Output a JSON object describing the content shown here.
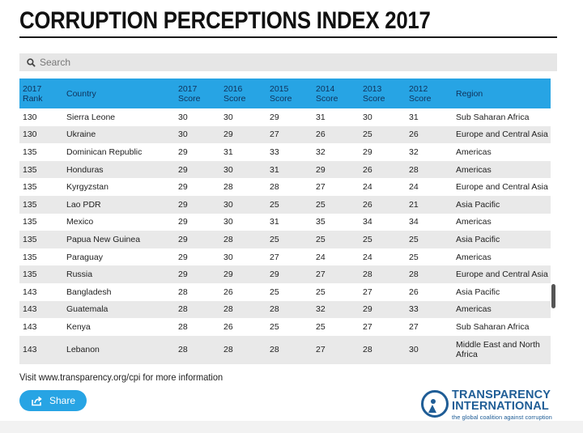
{
  "title": "CORRUPTION PERCEPTIONS INDEX 2017",
  "search": {
    "placeholder": "Search"
  },
  "table": {
    "headers": [
      {
        "line1": "2017",
        "line2": "Rank"
      },
      {
        "line1": "Country",
        "line2": ""
      },
      {
        "line1": "2017",
        "line2": "Score"
      },
      {
        "line1": "2016",
        "line2": "Score"
      },
      {
        "line1": "2015",
        "line2": "Score"
      },
      {
        "line1": "2014",
        "line2": "Score"
      },
      {
        "line1": "2013",
        "line2": "Score"
      },
      {
        "line1": "2012",
        "line2": "Score"
      },
      {
        "line1": "Region",
        "line2": ""
      }
    ],
    "rows": [
      [
        "130",
        "Sierra Leone",
        "30",
        "30",
        "29",
        "31",
        "30",
        "31",
        "Sub Saharan Africa"
      ],
      [
        "130",
        "Ukraine",
        "30",
        "29",
        "27",
        "26",
        "25",
        "26",
        "Europe and Central Asia"
      ],
      [
        "135",
        "Dominican Republic",
        "29",
        "31",
        "33",
        "32",
        "29",
        "32",
        "Americas"
      ],
      [
        "135",
        "Honduras",
        "29",
        "30",
        "31",
        "29",
        "26",
        "28",
        "Americas"
      ],
      [
        "135",
        "Kyrgyzstan",
        "29",
        "28",
        "28",
        "27",
        "24",
        "24",
        "Europe and Central Asia"
      ],
      [
        "135",
        "Lao PDR",
        "29",
        "30",
        "25",
        "25",
        "26",
        "21",
        "Asia Pacific"
      ],
      [
        "135",
        "Mexico",
        "29",
        "30",
        "31",
        "35",
        "34",
        "34",
        "Americas"
      ],
      [
        "135",
        "Papua New Guinea",
        "29",
        "28",
        "25",
        "25",
        "25",
        "25",
        "Asia Pacific"
      ],
      [
        "135",
        "Paraguay",
        "29",
        "30",
        "27",
        "24",
        "24",
        "25",
        "Americas"
      ],
      [
        "135",
        "Russia",
        "29",
        "29",
        "29",
        "27",
        "28",
        "28",
        "Europe and Central Asia"
      ],
      [
        "143",
        "Bangladesh",
        "28",
        "26",
        "25",
        "25",
        "27",
        "26",
        "Asia Pacific"
      ],
      [
        "143",
        "Guatemala",
        "28",
        "28",
        "28",
        "32",
        "29",
        "33",
        "Americas"
      ],
      [
        "143",
        "Kenya",
        "28",
        "26",
        "25",
        "25",
        "27",
        "27",
        "Sub Saharan Africa"
      ],
      [
        "143",
        "Lebanon",
        "28",
        "28",
        "28",
        "27",
        "28",
        "30",
        "Middle East and North Africa"
      ]
    ]
  },
  "footnote": "Visit www.transparency.org/cpi for more information",
  "share": {
    "label": "Share"
  },
  "logo": {
    "line1": "TRANSPARENCY",
    "line2": "INTERNATIONAL",
    "tagline": "the global coalition against corruption"
  },
  "colors": {
    "header_bg": "#27a4e4",
    "header_text": "#10325a",
    "stripe": "#e9e9e9",
    "logo_blue": "#1f5d96"
  }
}
